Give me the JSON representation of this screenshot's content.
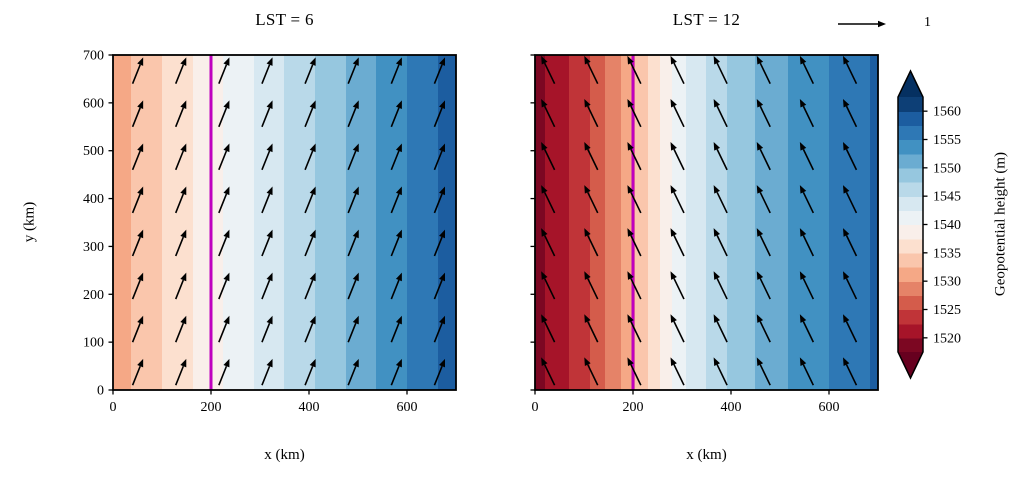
{
  "figure": {
    "background": "#ffffff"
  },
  "quiver_key": {
    "label": "1",
    "speed": 1
  },
  "colorbar": {
    "label": "Geopotential height (m)",
    "ticks": [
      1520,
      1525,
      1530,
      1535,
      1540,
      1545,
      1550,
      1555,
      1560
    ],
    "vmin": 1517.5,
    "vmax": 1562.5,
    "band_step": 2.5,
    "cmap": "RdBu",
    "extend": "both"
  },
  "chart_data": [
    {
      "type": "heatmap",
      "title": "LST = 6",
      "xlabel": "x (km)",
      "ylabel": "y (km)",
      "xlim": [
        0,
        700
      ],
      "ylim": [
        0,
        700
      ],
      "x_ticks": [
        0,
        200,
        400,
        600
      ],
      "y_ticks": [
        0,
        100,
        200,
        300,
        400,
        500,
        600,
        700
      ],
      "field_profile": {
        "note": "filled contours of geopotential height, varying with x only (red low at left to blue high at right)",
        "x_km": [
          0,
          100,
          200,
          300,
          400,
          500,
          600,
          700
        ],
        "z_m": [
          1531,
          1535,
          1539,
          1543,
          1547,
          1551,
          1555,
          1559
        ]
      },
      "vline": {
        "x_km": 200,
        "color": "#BF00BF"
      },
      "quiver": {
        "u": 0.22,
        "v": 0.55,
        "x_start_km": 40,
        "x_step_km": 88,
        "y_start_km": 10,
        "y_step_km": 90
      }
    },
    {
      "type": "heatmap",
      "title": "LST = 12",
      "xlabel": "x (km)",
      "ylabel": "",
      "xlim": [
        0,
        700
      ],
      "ylim": [
        0,
        700
      ],
      "x_ticks": [
        0,
        200,
        400,
        600
      ],
      "y_ticks": [
        0,
        100,
        200,
        300,
        400,
        500,
        600,
        700
      ],
      "field_profile": {
        "note": "filled contours of geopotential height, deep red low at left, steep gradient, blue high at right",
        "x_km": [
          0,
          100,
          200,
          300,
          400,
          500,
          600,
          700
        ],
        "z_m": [
          1519,
          1524,
          1532,
          1542,
          1548,
          1552,
          1555,
          1558
        ]
      },
      "vline": {
        "x_km": 200,
        "color": "#BF00BF"
      },
      "quiver": {
        "u": -0.28,
        "v": 0.58,
        "x_start_km": 40,
        "x_step_km": 88,
        "y_start_km": 10,
        "y_step_km": 90
      }
    }
  ]
}
